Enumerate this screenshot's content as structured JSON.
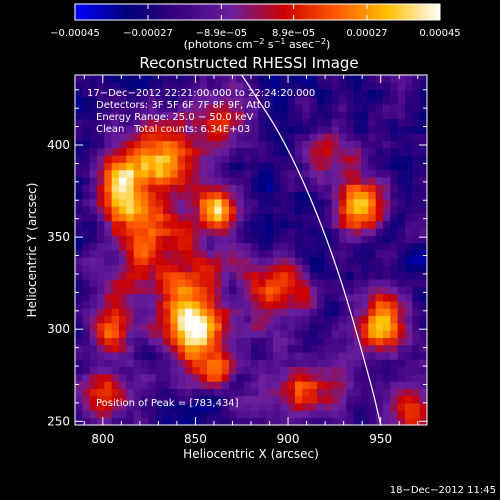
{
  "chart_data": {
    "type": "heatmap",
    "title": "Reconstructed RHESSI Image",
    "xlabel": "Heliocentric X (arcsec)",
    "ylabel": "Heliocentric Y (arcsec)",
    "xlim": [
      785,
      975
    ],
    "ylim": [
      248,
      438
    ],
    "x_ticks": [
      {
        "value": 800,
        "label": "800"
      },
      {
        "value": 850,
        "label": "850"
      },
      {
        "value": 900,
        "label": "900"
      },
      {
        "value": 950,
        "label": "950"
      }
    ],
    "y_ticks": [
      {
        "value": 250,
        "label": "250"
      },
      {
        "value": 300,
        "label": "300"
      },
      {
        "value": 350,
        "label": "350"
      },
      {
        "value": 400,
        "label": "400"
      }
    ],
    "colorbar": {
      "min": -0.00045,
      "max": 0.00045,
      "ticks": [
        {
          "value": -0.00045,
          "label": "−0.00045"
        },
        {
          "value": -0.00027,
          "label": "−0.00027"
        },
        {
          "value": -8.9e-05,
          "label": "−8.9e−05"
        },
        {
          "value": 8.9e-05,
          "label": "8.9e−05"
        },
        {
          "value": 0.00027,
          "label": "0.00027"
        },
        {
          "value": 0.00045,
          "label": "0.00045"
        }
      ],
      "unit_main": "(photons cm",
      "unit_sup1": "−2",
      "unit_mid1": " s",
      "unit_sup2": "−1",
      "unit_mid2": " asec",
      "unit_sup3": "−2",
      "unit_end": ")"
    },
    "annotations": {
      "time_range": "17−Dec−2012 22:21:00.000 to 22:24:20.000",
      "detectors": "Detectors: 3F 5F 6F 7F 8F 9F, Att 0",
      "energy": "Energy Range: 25.0 − 50.0 keV",
      "method": "Clean",
      "counts": "Total counts: 6.34E+03",
      "peak": "Position of Peak = [783,434]"
    },
    "limb_curve": [
      [
        875,
        438
      ],
      [
        900,
        400
      ],
      [
        925,
        340
      ],
      [
        945,
        270
      ],
      [
        950,
        248
      ]
    ],
    "sources": [
      {
        "x": 848,
        "y": 302,
        "sx": 12,
        "sy": 13,
        "amp": 1.0
      },
      {
        "x": 830,
        "y": 392,
        "sx": 16,
        "sy": 16,
        "amp": 0.85
      },
      {
        "x": 862,
        "y": 365,
        "sx": 8,
        "sy": 9,
        "amp": 0.85
      },
      {
        "x": 808,
        "y": 375,
        "sx": 9,
        "sy": 12,
        "amp": 0.7
      },
      {
        "x": 938,
        "y": 368,
        "sx": 10,
        "sy": 12,
        "amp": 0.9
      },
      {
        "x": 952,
        "y": 303,
        "sx": 11,
        "sy": 12,
        "amp": 0.85
      },
      {
        "x": 896,
        "y": 320,
        "sx": 12,
        "sy": 13,
        "amp": 0.65
      },
      {
        "x": 835,
        "y": 330,
        "sx": 25,
        "sy": 15,
        "amp": 0.55
      },
      {
        "x": 905,
        "y": 268,
        "sx": 18,
        "sy": 12,
        "amp": 0.55
      },
      {
        "x": 805,
        "y": 300,
        "sx": 8,
        "sy": 10,
        "amp": 0.6
      },
      {
        "x": 865,
        "y": 415,
        "sx": 10,
        "sy": 10,
        "amp": 0.6
      },
      {
        "x": 800,
        "y": 265,
        "sx": 15,
        "sy": 10,
        "amp": 0.5
      },
      {
        "x": 860,
        "y": 280,
        "sx": 10,
        "sy": 8,
        "amp": 0.6
      },
      {
        "x": 968,
        "y": 258,
        "sx": 10,
        "sy": 10,
        "amp": 0.6
      },
      {
        "x": 920,
        "y": 395,
        "sx": 12,
        "sy": 10,
        "amp": 0.4
      },
      {
        "x": 825,
        "y": 355,
        "sx": 12,
        "sy": 10,
        "amp": 0.5
      }
    ],
    "colormap": [
      "#0000ff",
      "#00007a",
      "#3a0080",
      "#6a1f9e",
      "#cc0000",
      "#ff5a00",
      "#ffc000",
      "#ffffff"
    ]
  },
  "footer": {
    "timestamp": "18−Dec−2012 11:45"
  }
}
